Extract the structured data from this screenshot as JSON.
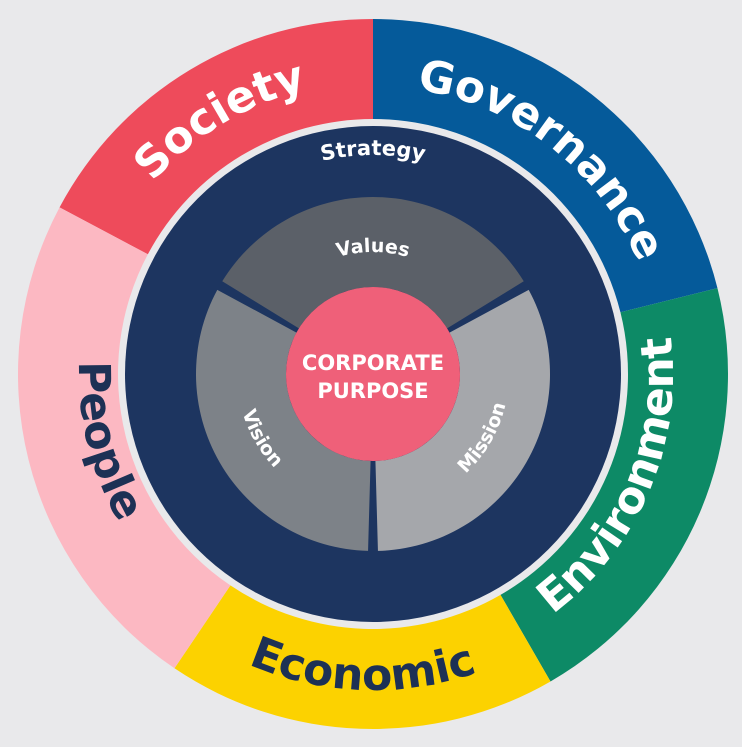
{
  "outer_ring": [
    {
      "key": "society",
      "label": "Society",
      "color": "#ee4b5b",
      "text_color": "#ffffff"
    },
    {
      "key": "governance",
      "label": "Governance",
      "color": "#055a9a",
      "text_color": "#ffffff"
    },
    {
      "key": "environment",
      "label": "Environment",
      "color": "#0d8a66",
      "text_color": "#ffffff"
    },
    {
      "key": "economic",
      "label": "Economic",
      "color": "#fcd200",
      "text_color": "#1d3155"
    },
    {
      "key": "people",
      "label": "People",
      "color": "#fcb8c2",
      "text_color": "#1d3155"
    }
  ],
  "strategy": {
    "label": "Strategy",
    "color": "#1d3560"
  },
  "inner_ring": [
    {
      "key": "values",
      "label": "Values",
      "color": "#5b6068"
    },
    {
      "key": "mission",
      "label": "Mission",
      "color": "#a5a7ab"
    },
    {
      "key": "vision",
      "label": "Vision",
      "color": "#7d8288"
    }
  ],
  "core": {
    "line1": "CORPORATE",
    "line2": "PURPOSE",
    "color": "#ef6079"
  }
}
